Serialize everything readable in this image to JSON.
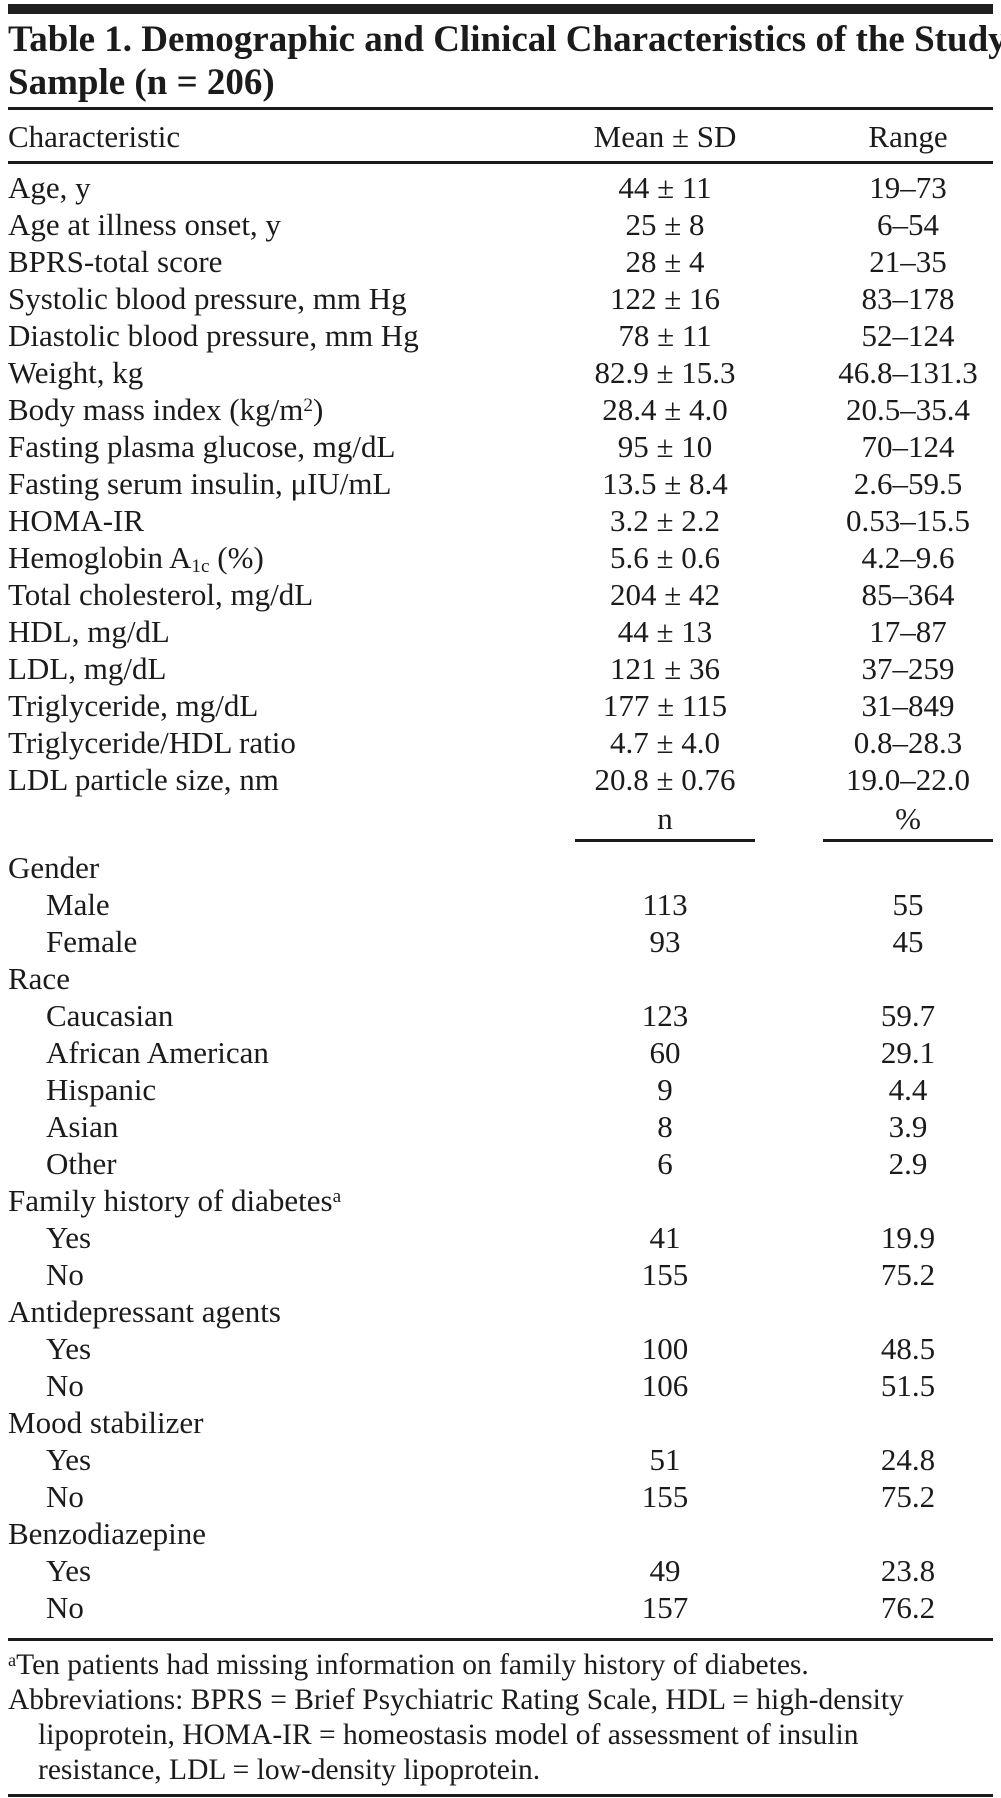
{
  "table": {
    "title_line1": "Table 1. Demographic and Clinical Characteristics of the Study",
    "title_line2": "Sample (n = 206)",
    "columns": {
      "characteristic": "Characteristic",
      "mean_sd": "Mean ± SD",
      "range": "Range"
    },
    "continuous_rows": [
      {
        "label": "Age, y",
        "mean_sd": "44 ± 11",
        "range": "19–73"
      },
      {
        "label": "Age at illness onset, y",
        "mean_sd": "25 ± 8",
        "range": "6–54"
      },
      {
        "label": "BPRS-total score",
        "mean_sd": "28 ± 4",
        "range": "21–35"
      },
      {
        "label": "Systolic blood pressure, mm Hg",
        "mean_sd": "122 ± 16",
        "range": "83–178"
      },
      {
        "label": "Diastolic blood pressure, mm Hg",
        "mean_sd": "78 ± 11",
        "range": "52–124"
      },
      {
        "label": "Weight, kg",
        "mean_sd": "82.9 ± 15.3",
        "range": "46.8–131.3"
      },
      {
        "label": "Body mass index (kg/m<sup>2</sup>)",
        "mean_sd": "28.4 ± 4.0",
        "range": "20.5–35.4"
      },
      {
        "label": "Fasting plasma glucose, mg/dL",
        "mean_sd": "95 ± 10",
        "range": "70–124"
      },
      {
        "label": "Fasting serum insulin, μIU/mL",
        "mean_sd": "13.5 ± 8.4",
        "range": "2.6–59.5"
      },
      {
        "label": "HOMA-IR",
        "mean_sd": "3.2 ± 2.2",
        "range": "0.53–15.5"
      },
      {
        "label": "Hemoglobin A<sub>1c</sub> (%)",
        "mean_sd": "5.6 ± 0.6",
        "range": "4.2–9.6"
      },
      {
        "label": "Total cholesterol, mg/dL",
        "mean_sd": "204 ± 42",
        "range": "85–364"
      },
      {
        "label": "HDL, mg/dL",
        "mean_sd": "44 ± 13",
        "range": "17–87"
      },
      {
        "label": "LDL, mg/dL",
        "mean_sd": "121 ± 36",
        "range": "37–259"
      },
      {
        "label": "Triglyceride, mg/dL",
        "mean_sd": "177 ± 115",
        "range": "31–849"
      },
      {
        "label": "Triglyceride/HDL ratio",
        "mean_sd": "4.7 ± 4.0",
        "range": "0.8–28.3"
      },
      {
        "label": "LDL particle size, nm",
        "mean_sd": "20.8 ± 0.76",
        "range": "19.0–22.0"
      }
    ],
    "count_header": {
      "n": "n",
      "pct": "%"
    },
    "categorical_rows": [
      {
        "label": "Gender",
        "indent": false,
        "n": "",
        "pct": ""
      },
      {
        "label": "Male",
        "indent": true,
        "n": "113",
        "pct": "55"
      },
      {
        "label": "Female",
        "indent": true,
        "n": "93",
        "pct": "45"
      },
      {
        "label": "Race",
        "indent": false,
        "n": "",
        "pct": ""
      },
      {
        "label": "Caucasian",
        "indent": true,
        "n": "123",
        "pct": "59.7"
      },
      {
        "label": "African American",
        "indent": true,
        "n": "60",
        "pct": "29.1"
      },
      {
        "label": "Hispanic",
        "indent": true,
        "n": "9",
        "pct": "4.4"
      },
      {
        "label": "Asian",
        "indent": true,
        "n": "8",
        "pct": "3.9"
      },
      {
        "label": "Other",
        "indent": true,
        "n": "6",
        "pct": "2.9"
      },
      {
        "label": "Family history of diabetes<sup>a</sup>",
        "indent": false,
        "n": "",
        "pct": ""
      },
      {
        "label": "Yes",
        "indent": true,
        "n": "41",
        "pct": "19.9"
      },
      {
        "label": "No",
        "indent": true,
        "n": "155",
        "pct": "75.2"
      },
      {
        "label": "Antidepressant agents",
        "indent": false,
        "n": "",
        "pct": ""
      },
      {
        "label": "Yes",
        "indent": true,
        "n": "100",
        "pct": "48.5"
      },
      {
        "label": "No",
        "indent": true,
        "n": "106",
        "pct": "51.5"
      },
      {
        "label": "Mood stabilizer",
        "indent": false,
        "n": "",
        "pct": ""
      },
      {
        "label": "Yes",
        "indent": true,
        "n": "51",
        "pct": "24.8"
      },
      {
        "label": "No",
        "indent": true,
        "n": "155",
        "pct": "75.2"
      },
      {
        "label": "Benzodiazepine",
        "indent": false,
        "n": "",
        "pct": ""
      },
      {
        "label": "Yes",
        "indent": true,
        "n": "49",
        "pct": "23.8"
      },
      {
        "label": "No",
        "indent": true,
        "n": "157",
        "pct": "76.2"
      }
    ],
    "footnotes": {
      "note_a": "<sup>a</sup>Ten patients had missing information on family history of diabetes.",
      "abbrev_lines": [
        "Abbreviations: BPRS = Brief Psychiatric Rating Scale, HDL = high-density",
        "lipoprotein, HOMA-IR = homeostasis model of assessment of insulin",
        "resistance, LDL = low-density lipoprotein."
      ]
    }
  }
}
